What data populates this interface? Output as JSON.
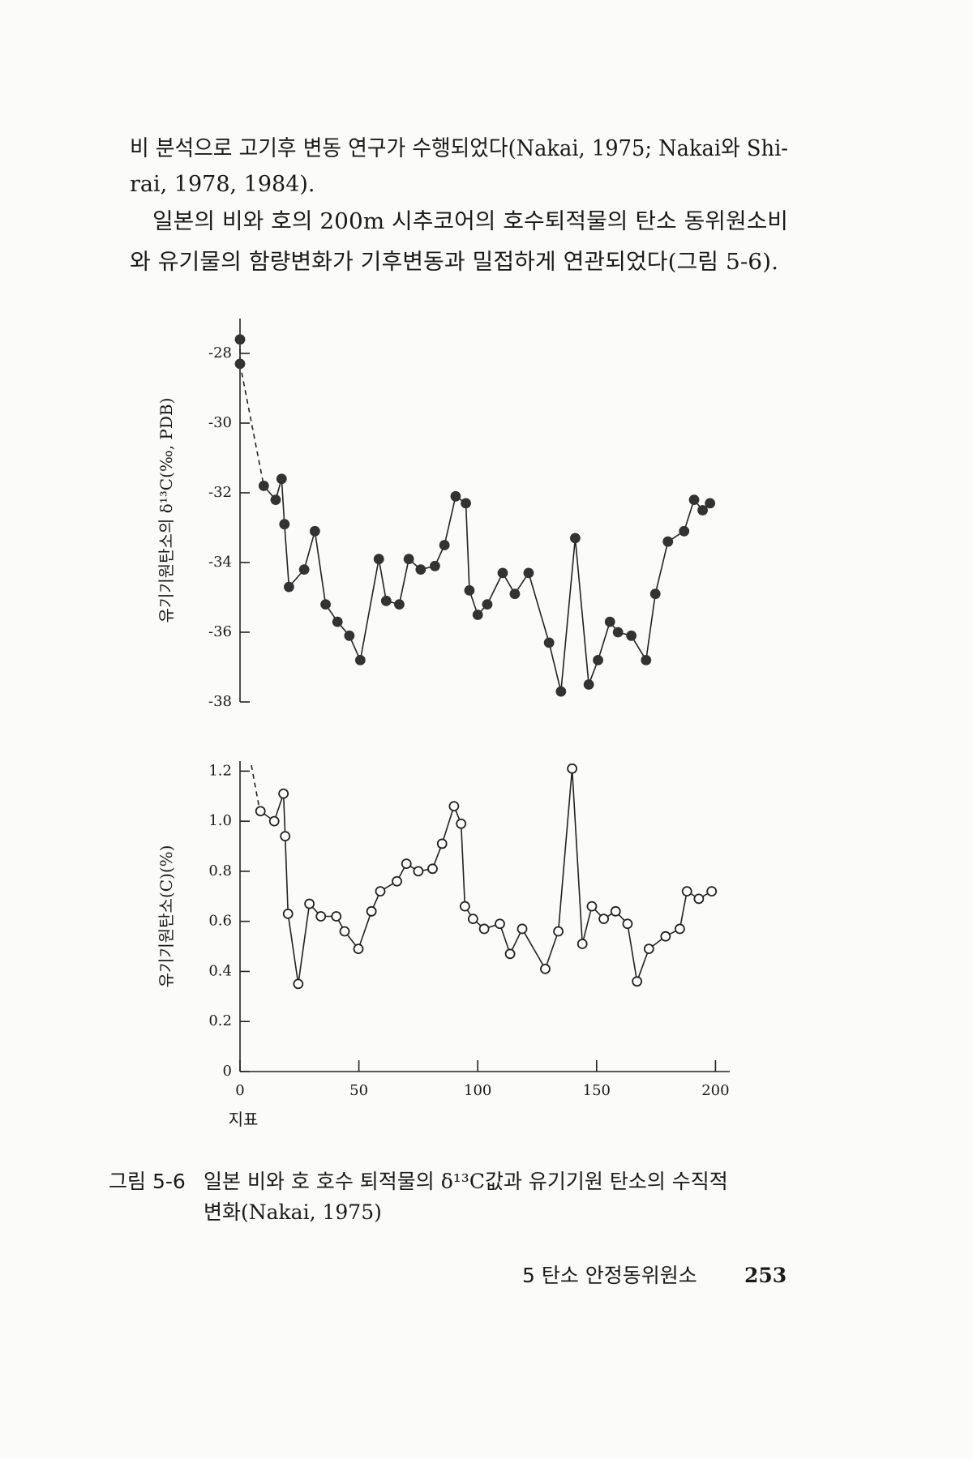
{
  "text_lines": [
    "비 분석으로 고기후 변동 연구가 수행되었다(Nakai, 1975; Nakai와 Shi-",
    "rai, 1978, 1984).",
    "일본의 비와 호의 200m 시추코어의 호수퇴적물의 탄소 동위원소비",
    "와 유기물의 함량변화가 기후변동과 밀접하게 연관되었다(그림 5-6)."
  ],
  "chart_data": [
    {
      "type": "line",
      "y_label": "유기기원탄소의 δ¹³C(‰, PDB)",
      "marker": "filled",
      "color": "#333333",
      "dashed_before": 2,
      "xlim": [
        0,
        206
      ],
      "ylim": [
        -38,
        -27
      ],
      "yticks": [
        -28,
        -30,
        -32,
        -34,
        -36,
        -38
      ],
      "x": [
        0,
        0,
        10,
        15,
        17.5,
        18.7,
        20.6,
        27,
        31.5,
        36,
        41,
        46,
        50.6,
        58.4,
        61.5,
        67,
        71,
        76,
        82,
        86,
        90.7,
        95,
        96.5,
        100,
        104,
        110.5,
        115.6,
        121.4,
        130,
        135,
        141,
        146.7,
        150.6,
        155.6,
        159,
        164.6,
        170.8,
        174.7,
        180,
        186.8,
        191,
        194.6,
        197.7
      ],
      "values": [
        -27.6,
        -28.3,
        -31.8,
        -32.2,
        -31.6,
        -32.9,
        -34.7,
        -34.2,
        -33.1,
        -35.2,
        -35.7,
        -36.1,
        -36.8,
        -33.9,
        -35.1,
        -35.2,
        -33.9,
        -34.2,
        -34.1,
        -33.5,
        -32.1,
        -32.3,
        -34.8,
        -35.5,
        -35.2,
        -34.3,
        -34.9,
        -34.3,
        -36.3,
        -37.7,
        -33.3,
        -37.5,
        -36.8,
        -35.7,
        -36.0,
        -36.1,
        -36.8,
        -34.9,
        -33.4,
        -33.1,
        -32.2,
        -32.5,
        -32.3
      ]
    },
    {
      "type": "line",
      "y_label": "유기기원탄소(C)(%)",
      "x_label": "지표",
      "marker": "open",
      "color": "#222222",
      "xlim": [
        0,
        206
      ],
      "ylim": [
        0,
        1.24
      ],
      "xticks": [
        0,
        50,
        100,
        150,
        200
      ],
      "yticks": [
        0,
        0.2,
        0.4,
        0.6,
        0.8,
        {
          "value": 1,
          "label": "1.0"
        },
        1.2
      ],
      "x": [
        8.6,
        14.4,
        18.3,
        19,
        20.2,
        24.5,
        29.2,
        34,
        40.5,
        44,
        49.8,
        55.3,
        59,
        66,
        70,
        75,
        81,
        85,
        90,
        93,
        94.6,
        98,
        102.7,
        109.3,
        113.6,
        118.7,
        128.4,
        133.9,
        139.7,
        144,
        148,
        153,
        158,
        163,
        167,
        172,
        179,
        185,
        188,
        193,
        198.4
      ],
      "values": [
        1.04,
        1.0,
        1.11,
        0.94,
        0.63,
        0.35,
        0.67,
        0.62,
        0.62,
        0.56,
        0.49,
        0.64,
        0.72,
        0.76,
        0.83,
        0.8,
        0.81,
        0.91,
        1.06,
        0.99,
        0.66,
        0.61,
        0.57,
        0.59,
        0.47,
        0.57,
        0.41,
        0.56,
        1.21,
        0.51,
        0.66,
        0.61,
        0.64,
        0.59,
        0.36,
        0.49,
        0.54,
        0.57,
        0.72,
        0.69,
        0.72
      ]
    }
  ],
  "caption": {
    "label": "그림 5-6",
    "lines": [
      "일본 비와 호 호수 퇴적물의 δ¹³C값과 유기기원 탄소의 수직적",
      "변화(Nakai, 1975)"
    ]
  },
  "footer": {
    "chapter": "5  탄소 안정동위원소",
    "page": "253"
  }
}
